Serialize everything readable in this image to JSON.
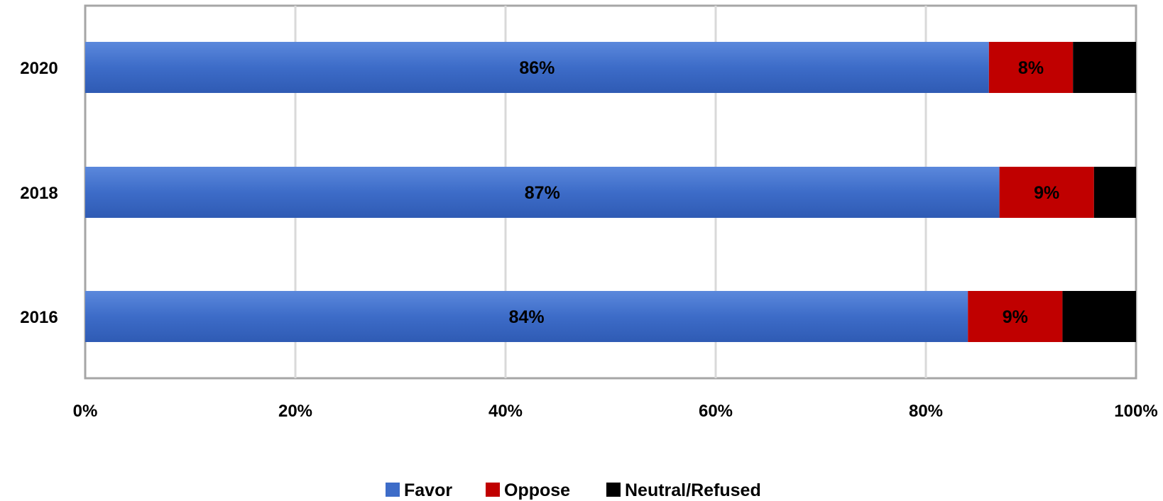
{
  "chart_data": {
    "type": "bar",
    "orientation": "horizontal",
    "stacked": true,
    "categories": [
      "2020",
      "2018",
      "2016"
    ],
    "series": [
      {
        "name": "Favor",
        "values": [
          86,
          87,
          84
        ],
        "labels": [
          "86%",
          "87%",
          "84%"
        ],
        "color": "#3d6cc8"
      },
      {
        "name": "Oppose",
        "values": [
          8,
          9,
          9
        ],
        "labels": [
          "8%",
          "9%",
          "9%"
        ],
        "color": "#c00000"
      },
      {
        "name": "Neutral/Refused",
        "values": [
          6,
          4,
          7
        ],
        "labels": [
          "",
          "",
          ""
        ],
        "color": "#000000"
      }
    ],
    "xlim": [
      0,
      100
    ],
    "xticks": [
      "0%",
      "20%",
      "40%",
      "60%",
      "80%",
      "100%"
    ],
    "grid": true,
    "legend": "bottom-center",
    "title": "",
    "xlabel": "",
    "ylabel": ""
  }
}
